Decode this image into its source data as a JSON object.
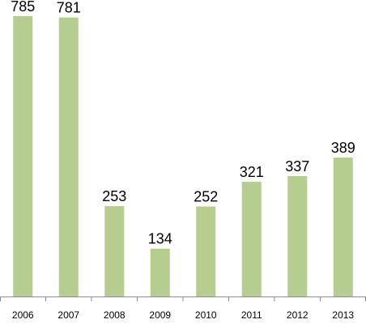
{
  "chart_data": {
    "type": "bar",
    "categories": [
      "2006",
      "2007",
      "2008",
      "2009",
      "2010",
      "2011",
      "2012",
      "2013"
    ],
    "values": [
      785,
      781,
      253,
      134,
      252,
      321,
      337,
      389
    ],
    "title": "",
    "xlabel": "",
    "ylabel": "",
    "ylim": [
      0,
      830
    ],
    "grid": false,
    "legend": "none",
    "data_labels": true,
    "colors": {
      "bar": "#b5ce8f",
      "axis": "#8c8c8c",
      "text": "#000000"
    }
  }
}
